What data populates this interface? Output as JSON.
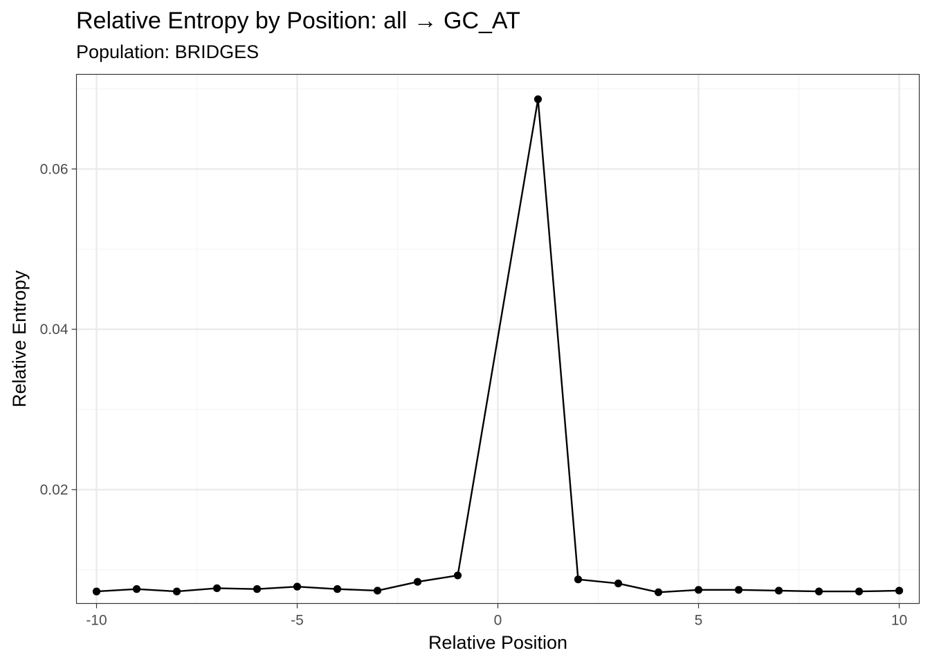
{
  "chart_data": {
    "type": "line",
    "title": "Relative Entropy by Position: all → GC_AT",
    "subtitle": "Population: BRIDGES",
    "xlabel": "Relative Position",
    "ylabel": "Relative Entropy",
    "xlim": [
      -10.5,
      10.5
    ],
    "ylim": [
      0.0058,
      0.0718
    ],
    "x_ticks": [
      -10,
      -5,
      0,
      5,
      10
    ],
    "x_tick_labels": [
      "-10",
      "-5",
      "0",
      "5",
      "10"
    ],
    "y_ticks": [
      0.02,
      0.04,
      0.06
    ],
    "y_tick_labels": [
      "0.02",
      "0.04",
      "0.06"
    ],
    "x_minor_ticks": [
      -7.5,
      -2.5,
      2.5,
      7.5
    ],
    "y_minor_ticks": [
      0.01,
      0.03,
      0.05,
      0.07
    ],
    "grid": true,
    "theme": "bw",
    "colors": {
      "line": "#000000",
      "point": "#000000",
      "grid_major": "#ebebeb",
      "grid_minor": "#f4f4f4",
      "panel_border": "#333333",
      "tick_label": "#4d4d4d"
    },
    "series": [
      {
        "x": [
          -10,
          -9,
          -8,
          -7,
          -6,
          -5,
          -4,
          -3,
          -2,
          -1,
          1,
          2,
          3,
          4,
          5,
          6,
          7,
          8,
          9,
          10
        ],
        "y": [
          0.0073,
          0.0076,
          0.0073,
          0.0077,
          0.0076,
          0.0079,
          0.0076,
          0.0074,
          0.0085,
          0.0093,
          0.0687,
          0.0088,
          0.0083,
          0.0072,
          0.0075,
          0.0075,
          0.0074,
          0.0073,
          0.0073,
          0.0074
        ]
      }
    ]
  }
}
